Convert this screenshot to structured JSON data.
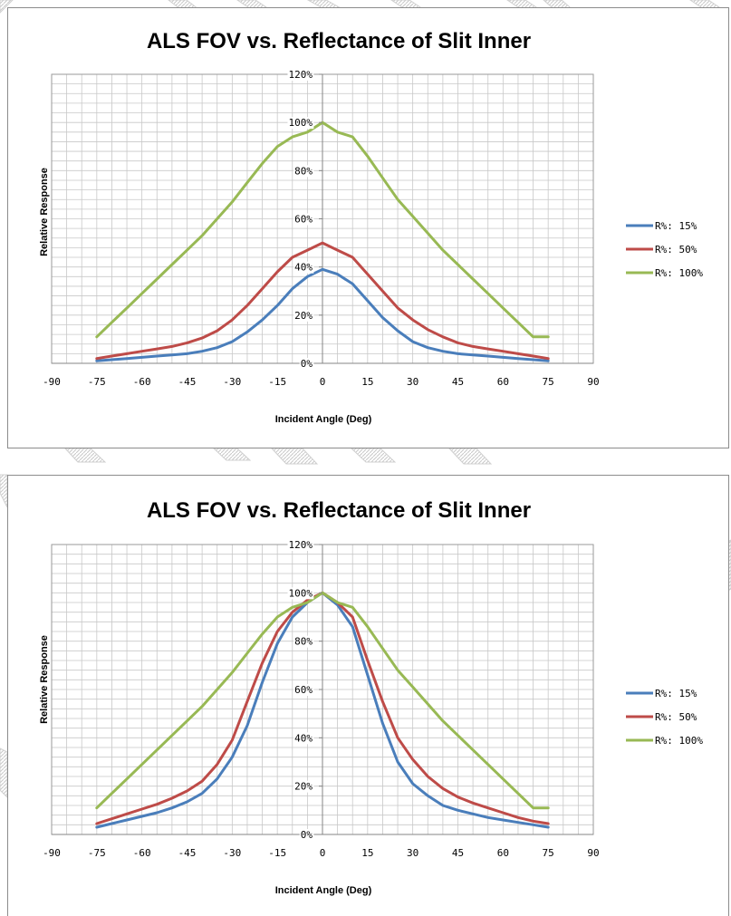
{
  "chart_data": [
    {
      "type": "line",
      "title": "ALS FOV vs. Reflectance of Slit Inner",
      "xlabel": "Incident Angle  (Deg)",
      "ylabel": "Relative Response",
      "xlim": [
        -90,
        90
      ],
      "ylim": [
        0,
        120
      ],
      "x_ticks": [
        "-90",
        "-75",
        "-60",
        "-45",
        "-30",
        "-15",
        "0",
        "15",
        "30",
        "45",
        "60",
        "75",
        "90"
      ],
      "y_ticks": [
        "0%",
        "20%",
        "40%",
        "60%",
        "80%",
        "100%",
        "120%"
      ],
      "grid": true,
      "legend_position": "right",
      "x": [
        -75,
        -70,
        -65,
        -60,
        -55,
        -50,
        -45,
        -40,
        -35,
        -30,
        -25,
        -20,
        -15,
        -10,
        -5,
        0,
        5,
        10,
        15,
        20,
        25,
        30,
        35,
        40,
        45,
        50,
        55,
        60,
        65,
        70,
        75
      ],
      "series": [
        {
          "name": "R%: 15%",
          "color": "#4a7ebb",
          "values": [
            1,
            1.5,
            2,
            2.5,
            3,
            3.5,
            4,
            5,
            6.5,
            9,
            13,
            18,
            24,
            31,
            36,
            39,
            37,
            33,
            26,
            19,
            13.5,
            9,
            6.5,
            5,
            4,
            3.5,
            3,
            2.5,
            2,
            1.5,
            1
          ]
        },
        {
          "name": "R%: 50%",
          "color": "#be4b48",
          "values": [
            2,
            3,
            4,
            5,
            6,
            7,
            8.5,
            10.5,
            13.5,
            18,
            24,
            31,
            38,
            44,
            47,
            50,
            47,
            44,
            37,
            30,
            23,
            18,
            14,
            11,
            8.5,
            7,
            6,
            5,
            4,
            3,
            2
          ]
        },
        {
          "name": "R%: 100%",
          "color": "#98b954",
          "values": [
            11,
            17,
            23,
            29,
            35,
            41,
            47,
            53,
            60,
            67,
            75,
            83,
            90,
            94,
            96,
            100,
            96,
            94,
            86,
            77,
            68,
            61,
            54,
            47,
            41,
            35,
            29,
            23,
            17,
            11,
            11
          ]
        }
      ]
    },
    {
      "type": "line",
      "title": "ALS FOV vs. Reflectance of Slit Inner",
      "xlabel": "Incident Angle  (Deg)",
      "ylabel": "Relative Response",
      "xlim": [
        -90,
        90
      ],
      "ylim": [
        0,
        120
      ],
      "x_ticks": [
        "-90",
        "-75",
        "-60",
        "-45",
        "-30",
        "-15",
        "0",
        "15",
        "30",
        "45",
        "60",
        "75",
        "90"
      ],
      "y_ticks": [
        "0%",
        "20%",
        "40%",
        "60%",
        "80%",
        "100%",
        "120%"
      ],
      "grid": true,
      "legend_position": "right",
      "x": [
        -75,
        -70,
        -65,
        -60,
        -55,
        -50,
        -45,
        -40,
        -35,
        -30,
        -25,
        -20,
        -15,
        -10,
        -5,
        0,
        5,
        10,
        15,
        20,
        25,
        30,
        35,
        40,
        45,
        50,
        55,
        60,
        65,
        70,
        75
      ],
      "series": [
        {
          "name": "R%: 15%",
          "color": "#4a7ebb",
          "values": [
            3,
            4.5,
            6,
            7.5,
            9,
            11,
            13.5,
            17,
            23,
            32,
            45,
            63,
            79,
            90,
            96,
            100,
            95,
            86,
            66,
            46,
            30,
            21,
            16,
            12,
            10,
            8.5,
            7,
            6,
            5,
            4,
            3
          ]
        },
        {
          "name": "R%: 50%",
          "color": "#be4b48",
          "values": [
            4.5,
            6.5,
            8.5,
            10.5,
            12.5,
            15,
            18,
            22,
            29,
            39,
            55,
            71,
            84,
            92,
            97,
            100,
            96,
            90,
            72,
            55,
            40,
            31,
            24,
            19,
            15.5,
            13,
            11,
            9,
            7,
            5.5,
            4.5
          ]
        },
        {
          "name": "R%: 100%",
          "color": "#98b954",
          "values": [
            11,
            17,
            23,
            29,
            35,
            41,
            47,
            53,
            60,
            67,
            75,
            83,
            90,
            94,
            96,
            100,
            96,
            94,
            86,
            77,
            68,
            61,
            54,
            47,
            41,
            35,
            29,
            23,
            17,
            11,
            11
          ]
        }
      ]
    }
  ]
}
